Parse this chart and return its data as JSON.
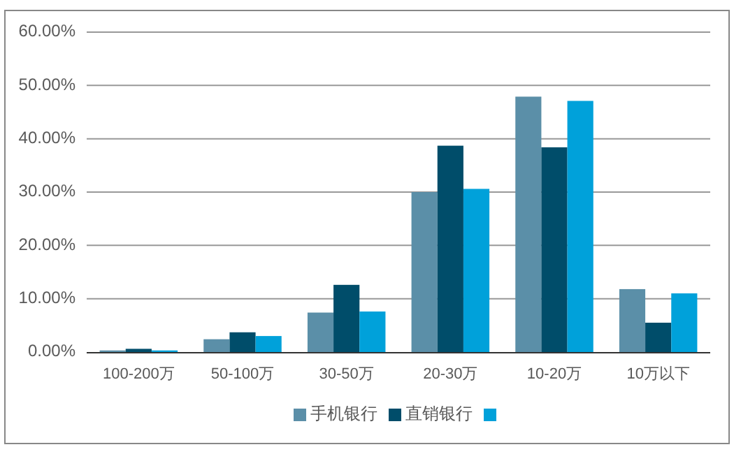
{
  "chart_data": {
    "type": "bar",
    "categories": [
      "100-200万",
      "50-100万",
      "30-50万",
      "20-30万",
      "10-20万",
      "10万以下"
    ],
    "series": [
      {
        "name": "手机银行",
        "color": "#5b8fa8",
        "values": [
          0.3,
          2.4,
          7.4,
          30.0,
          47.9,
          11.8
        ]
      },
      {
        "name": "直销银行",
        "color": "#004d6a",
        "values": [
          0.6,
          3.7,
          12.6,
          38.7,
          38.4,
          5.5
        ]
      },
      {
        "color": "#00a1da",
        "values": [
          0.3,
          3.0,
          7.6,
          30.6,
          47.1,
          11.0
        ]
      }
    ],
    "ylim": [
      0,
      60
    ],
    "yticks": [
      {
        "value": 0,
        "label": "0.00%"
      },
      {
        "value": 10,
        "label": "10.00%"
      },
      {
        "value": 20,
        "label": "20.00%"
      },
      {
        "value": 30,
        "label": "30.00%"
      },
      {
        "value": 40,
        "label": "40.00%"
      },
      {
        "value": 50,
        "label": "50.00%"
      },
      {
        "value": 60,
        "label": "60.00%"
      }
    ],
    "grid": "y",
    "legend": "bottom"
  }
}
